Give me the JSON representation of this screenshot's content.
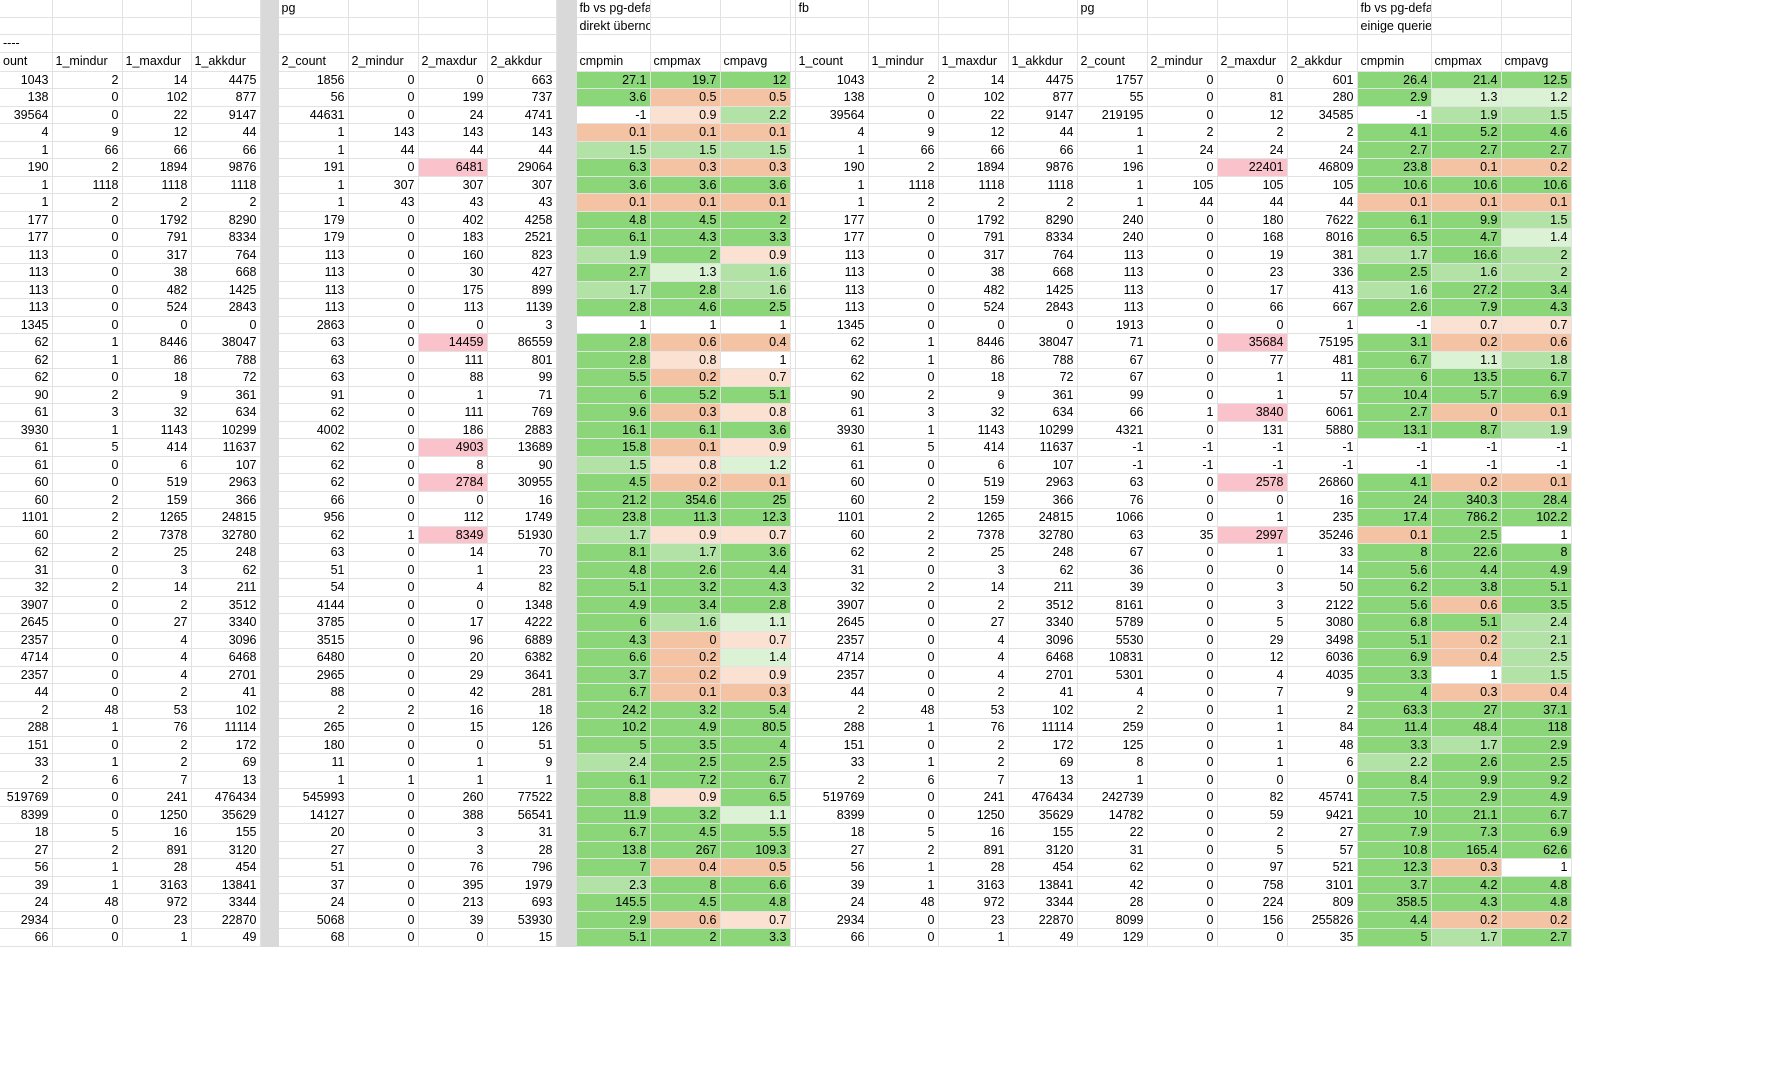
{
  "colors": {
    "green": "#8cd67a",
    "lightgreen": "#b2e2a5",
    "palegreen": "#dcf2d4",
    "white": "#ffffff",
    "salmon": "#f4c3a4",
    "lightsalmon": "#fae1d2",
    "pink": "#fac3cc"
  },
  "widths": [
    52,
    70,
    69,
    69,
    18,
    70,
    70,
    69,
    69,
    20,
    74,
    70,
    70,
    5,
    73,
    70,
    70,
    69,
    70,
    70,
    70,
    70,
    74,
    70,
    70
  ],
  "title_rows": [
    [
      null,
      null,
      null,
      null,
      "SEP",
      "pg",
      null,
      null,
      null,
      "SEP",
      "fb vs pg-default",
      null,
      null,
      null,
      "fb",
      null,
      null,
      null,
      "pg",
      null,
      null,
      null,
      "fb vs pg-default",
      null,
      null
    ],
    [
      null,
      null,
      null,
      null,
      "SEP",
      null,
      null,
      null,
      null,
      "SEP",
      "direkt übernommene queries",
      null,
      null,
      null,
      null,
      null,
      null,
      null,
      null,
      null,
      null,
      null,
      "einige queries optimiert",
      null,
      null
    ],
    [
      "----",
      null,
      null,
      null,
      "SEP",
      null,
      null,
      null,
      null,
      "SEP",
      null,
      null,
      null,
      null,
      null,
      null,
      null,
      null,
      null,
      null,
      null,
      null,
      null,
      null,
      null
    ]
  ],
  "headers": [
    "ount",
    "1_mindur",
    "1_maxdur",
    "1_akkdur",
    "",
    "2_count",
    "2_mindur",
    "2_maxdur",
    "2_akkdur",
    "",
    "cmpmin",
    "cmpmax",
    "cmpavg",
    "",
    "1_count",
    "1_mindur",
    "1_maxdur",
    "1_akkdur",
    "2_count",
    "2_mindur",
    "2_maxdur",
    "2_akkdur",
    "cmpmin",
    "cmpmax",
    "cmpavg"
  ],
  "rows": [
    [
      "1043",
      "2",
      "14",
      "4475",
      "1856",
      "0",
      "0",
      "663",
      "27.1:g",
      "19.7:g",
      "12:g",
      "1043",
      "2",
      "14",
      "4475",
      "1757",
      "0",
      "0",
      "601",
      "26.4:g",
      "21.4:g",
      "12.5:g"
    ],
    [
      "138",
      "0",
      "102",
      "877",
      "56",
      "0",
      "199",
      "737",
      "3.6:g",
      "0.5:s",
      "0.5:s",
      "138",
      "0",
      "102",
      "877",
      "55",
      "0",
      "81",
      "280",
      "2.9:g",
      "1.3:p",
      "1.2:p"
    ],
    [
      "39564",
      "0",
      "22",
      "9147",
      "44631",
      "0",
      "24",
      "4741",
      "-1:w",
      "0.9:ls",
      "2.2:lg",
      "39564",
      "0",
      "22",
      "9147",
      "219195",
      "0",
      "12",
      "34585",
      "-1:w",
      "1.9:lg",
      "1.5:lg"
    ],
    [
      "4",
      "9",
      "12",
      "44",
      "1",
      "143",
      "143",
      "143",
      "0.1:s",
      "0.1:s",
      "0.1:s",
      "4",
      "9",
      "12",
      "44",
      "1",
      "2",
      "2",
      "2",
      "4.1:g",
      "5.2:g",
      "4.6:g"
    ],
    [
      "1",
      "66",
      "66",
      "66",
      "1",
      "44",
      "44",
      "44",
      "1.5:lg",
      "1.5:lg",
      "1.5:lg",
      "1",
      "66",
      "66",
      "66",
      "1",
      "24",
      "24",
      "24",
      "2.7:g",
      "2.7:g",
      "2.7:g"
    ],
    [
      "190",
      "2",
      "1894",
      "9876",
      "191",
      "0",
      "6481:pk",
      "29064",
      "6.3:g",
      "0.3:s",
      "0.3:s",
      "190",
      "2",
      "1894",
      "9876",
      "196",
      "0",
      "22401:pk",
      "46809",
      "23.8:g",
      "0.1:s",
      "0.2:s"
    ],
    [
      "1",
      "1118",
      "1118",
      "1118",
      "1",
      "307",
      "307",
      "307",
      "3.6:g",
      "3.6:g",
      "3.6:g",
      "1",
      "1118",
      "1118",
      "1118",
      "1",
      "105",
      "105",
      "105",
      "10.6:g",
      "10.6:g",
      "10.6:g"
    ],
    [
      "1",
      "2",
      "2",
      "2",
      "1",
      "43",
      "43",
      "43",
      "0.1:s",
      "0.1:s",
      "0.1:s",
      "1",
      "2",
      "2",
      "2",
      "1",
      "44",
      "44",
      "44",
      "0.1:s",
      "0.1:s",
      "0.1:s"
    ],
    [
      "177",
      "0",
      "1792",
      "8290",
      "179",
      "0",
      "402",
      "4258",
      "4.8:g",
      "4.5:g",
      "2:g",
      "177",
      "0",
      "1792",
      "8290",
      "240",
      "0",
      "180",
      "7622",
      "6.1:g",
      "9.9:g",
      "1.5:lg"
    ],
    [
      "177",
      "0",
      "791",
      "8334",
      "179",
      "0",
      "183",
      "2521",
      "6.1:g",
      "4.3:g",
      "3.3:g",
      "177",
      "0",
      "791",
      "8334",
      "240",
      "0",
      "168",
      "8016",
      "6.5:g",
      "4.7:g",
      "1.4:p"
    ],
    [
      "113",
      "0",
      "317",
      "764",
      "113",
      "0",
      "160",
      "823",
      "1.9:lg",
      "2:g",
      "0.9:ls",
      "113",
      "0",
      "317",
      "764",
      "113",
      "0",
      "19",
      "381",
      "1.7:lg",
      "16.6:g",
      "2:lg"
    ],
    [
      "113",
      "0",
      "38",
      "668",
      "113",
      "0",
      "30",
      "427",
      "2.7:g",
      "1.3:p",
      "1.6:lg",
      "113",
      "0",
      "38",
      "668",
      "113",
      "0",
      "23",
      "336",
      "2.5:g",
      "1.6:lg",
      "2:lg"
    ],
    [
      "113",
      "0",
      "482",
      "1425",
      "113",
      "0",
      "175",
      "899",
      "1.7:lg",
      "2.8:g",
      "1.6:lg",
      "113",
      "0",
      "482",
      "1425",
      "113",
      "0",
      "17",
      "413",
      "1.6:lg",
      "27.2:g",
      "3.4:g"
    ],
    [
      "113",
      "0",
      "524",
      "2843",
      "113",
      "0",
      "113",
      "1139",
      "2.8:g",
      "4.6:g",
      "2.5:g",
      "113",
      "0",
      "524",
      "2843",
      "113",
      "0",
      "66",
      "667",
      "2.6:g",
      "7.9:g",
      "4.3:g"
    ],
    [
      "1345",
      "0",
      "0",
      "0",
      "2863",
      "0",
      "0",
      "3",
      "1:w",
      "1:w",
      "1:w",
      "1345",
      "0",
      "0",
      "0",
      "1913",
      "0",
      "0",
      "1",
      "-1:w",
      "0.7:ls",
      "0.7:ls"
    ],
    [
      "62",
      "1",
      "8446",
      "38047",
      "63",
      "0",
      "14459:pk",
      "86559",
      "2.8:g",
      "0.6:s",
      "0.4:s",
      "62",
      "1",
      "8446",
      "38047",
      "71",
      "0",
      "35684:pk",
      "75195",
      "3.1:g",
      "0.2:s",
      "0.6:s"
    ],
    [
      "62",
      "1",
      "86",
      "788",
      "63",
      "0",
      "111",
      "801",
      "2.8:g",
      "0.8:ls",
      "1:w",
      "62",
      "1",
      "86",
      "788",
      "67",
      "0",
      "77",
      "481",
      "6.7:g",
      "1.1:p",
      "1.8:lg"
    ],
    [
      "62",
      "0",
      "18",
      "72",
      "63",
      "0",
      "88",
      "99",
      "5.5:g",
      "0.2:s",
      "0.7:ls",
      "62",
      "0",
      "18",
      "72",
      "67",
      "0",
      "1",
      "11",
      "6:g",
      "13.5:g",
      "6.7:g"
    ],
    [
      "90",
      "2",
      "9",
      "361",
      "91",
      "0",
      "1",
      "71",
      "6:g",
      "5.2:g",
      "5.1:g",
      "90",
      "2",
      "9",
      "361",
      "99",
      "0",
      "1",
      "57",
      "10.4:g",
      "5.7:g",
      "6.9:g"
    ],
    [
      "61",
      "3",
      "32",
      "634",
      "62",
      "0",
      "111",
      "769",
      "9.6:g",
      "0.3:s",
      "0.8:ls",
      "61",
      "3",
      "32",
      "634",
      "66",
      "1",
      "3840:pk",
      "6061",
      "2.7:g",
      "0:s",
      "0.1:s"
    ],
    [
      "3930",
      "1",
      "1143",
      "10299",
      "4002",
      "0",
      "186",
      "2883",
      "16.1:g",
      "6.1:g",
      "3.6:g",
      "3930",
      "1",
      "1143",
      "10299",
      "4321",
      "0",
      "131",
      "5880",
      "13.1:g",
      "8.7:g",
      "1.9:lg"
    ],
    [
      "61",
      "5",
      "414",
      "11637",
      "62",
      "0",
      "4903:pk",
      "13689",
      "15.8:g",
      "0.1:s",
      "0.9:ls",
      "61",
      "5",
      "414",
      "11637",
      "-1",
      "-1",
      "-1",
      "-1",
      "-1:w",
      "-1:w",
      "-1:w"
    ],
    [
      "61",
      "0",
      "6",
      "107",
      "62",
      "0",
      "8",
      "90",
      "1.5:lg",
      "0.8:ls",
      "1.2:p",
      "61",
      "0",
      "6",
      "107",
      "-1",
      "-1",
      "-1",
      "-1",
      "-1:w",
      "-1:w",
      "-1:w"
    ],
    [
      "60",
      "0",
      "519",
      "2963",
      "62",
      "0",
      "2784:pk",
      "30955",
      "4.5:g",
      "0.2:s",
      "0.1:s",
      "60",
      "0",
      "519",
      "2963",
      "63",
      "0",
      "2578:pk",
      "26860",
      "4.1:g",
      "0.2:s",
      "0.1:s"
    ],
    [
      "60",
      "2",
      "159",
      "366",
      "66",
      "0",
      "0",
      "16",
      "21.2:g",
      "354.6:g",
      "25:g",
      "60",
      "2",
      "159",
      "366",
      "76",
      "0",
      "0",
      "16",
      "24:g",
      "340.3:g",
      "28.4:g"
    ],
    [
      "1101",
      "2",
      "1265",
      "24815",
      "956",
      "0",
      "112",
      "1749",
      "23.8:g",
      "11.3:g",
      "12.3:g",
      "1101",
      "2",
      "1265",
      "24815",
      "1066",
      "0",
      "1",
      "235",
      "17.4:g",
      "786.2:g",
      "102.2:g"
    ],
    [
      "60",
      "2",
      "7378",
      "32780",
      "62",
      "1",
      "8349:pk",
      "51930",
      "1.7:lg",
      "0.9:ls",
      "0.7:ls",
      "60",
      "2",
      "7378",
      "32780",
      "63",
      "35",
      "2997:pk",
      "35246",
      "0.1:s",
      "2.5:g",
      "1:w"
    ],
    [
      "62",
      "2",
      "25",
      "248",
      "63",
      "0",
      "14",
      "70",
      "8.1:g",
      "1.7:lg",
      "3.6:g",
      "62",
      "2",
      "25",
      "248",
      "67",
      "0",
      "1",
      "33",
      "8:g",
      "22.6:g",
      "8:g"
    ],
    [
      "31",
      "0",
      "3",
      "62",
      "51",
      "0",
      "1",
      "23",
      "4.8:g",
      "2.6:g",
      "4.4:g",
      "31",
      "0",
      "3",
      "62",
      "36",
      "0",
      "0",
      "14",
      "5.6:g",
      "4.4:g",
      "4.9:g"
    ],
    [
      "32",
      "2",
      "14",
      "211",
      "54",
      "0",
      "4",
      "82",
      "5.1:g",
      "3.2:g",
      "4.3:g",
      "32",
      "2",
      "14",
      "211",
      "39",
      "0",
      "3",
      "50",
      "6.2:g",
      "3.8:g",
      "5.1:g"
    ],
    [
      "3907",
      "0",
      "2",
      "3512",
      "4144",
      "0",
      "0",
      "1348",
      "4.9:g",
      "3.4:g",
      "2.8:g",
      "3907",
      "0",
      "2",
      "3512",
      "8161",
      "0",
      "3",
      "2122",
      "5.6:g",
      "0.6:s",
      "3.5:g"
    ],
    [
      "2645",
      "0",
      "27",
      "3340",
      "3785",
      "0",
      "17",
      "4222",
      "6:g",
      "1.6:lg",
      "1.1:p",
      "2645",
      "0",
      "27",
      "3340",
      "5789",
      "0",
      "5",
      "3080",
      "6.8:g",
      "5.1:g",
      "2.4:lg"
    ],
    [
      "2357",
      "0",
      "4",
      "3096",
      "3515",
      "0",
      "96",
      "6889",
      "4.3:g",
      "0:s",
      "0.7:ls",
      "2357",
      "0",
      "4",
      "3096",
      "5530",
      "0",
      "29",
      "3498",
      "5.1:g",
      "0.2:s",
      "2.1:lg"
    ],
    [
      "4714",
      "0",
      "4",
      "6468",
      "6480",
      "0",
      "20",
      "6382",
      "6.6:g",
      "0.2:s",
      "1.4:p",
      "4714",
      "0",
      "4",
      "6468",
      "10831",
      "0",
      "12",
      "6036",
      "6.9:g",
      "0.4:s",
      "2.5:lg"
    ],
    [
      "2357",
      "0",
      "4",
      "2701",
      "2965",
      "0",
      "29",
      "3641",
      "3.7:g",
      "0.2:s",
      "0.9:ls",
      "2357",
      "0",
      "4",
      "2701",
      "5301",
      "0",
      "4",
      "4035",
      "3.3:g",
      "1:w",
      "1.5:lg"
    ],
    [
      "44",
      "0",
      "2",
      "41",
      "88",
      "0",
      "42",
      "281",
      "6.7:g",
      "0.1:s",
      "0.3:s",
      "44",
      "0",
      "2",
      "41",
      "4",
      "0",
      "7",
      "9",
      "4:g",
      "0.3:s",
      "0.4:s"
    ],
    [
      "2",
      "48",
      "53",
      "102",
      "2",
      "2",
      "16",
      "18",
      "24.2:g",
      "3.2:g",
      "5.4:g",
      "2",
      "48",
      "53",
      "102",
      "2",
      "0",
      "1",
      "2",
      "63.3:g",
      "27:g",
      "37.1:g"
    ],
    [
      "288",
      "1",
      "76",
      "11114",
      "265",
      "0",
      "15",
      "126",
      "10.2:g",
      "4.9:g",
      "80.5:g",
      "288",
      "1",
      "76",
      "11114",
      "259",
      "0",
      "1",
      "84",
      "11.4:g",
      "48.4:g",
      "118:g"
    ],
    [
      "151",
      "0",
      "2",
      "172",
      "180",
      "0",
      "0",
      "51",
      "5:g",
      "3.5:g",
      "4:g",
      "151",
      "0",
      "2",
      "172",
      "125",
      "0",
      "1",
      "48",
      "3.3:g",
      "1.7:lg",
      "2.9:g"
    ],
    [
      "33",
      "1",
      "2",
      "69",
      "11",
      "0",
      "1",
      "9",
      "2.4:lg",
      "2.5:g",
      "2.5:g",
      "33",
      "1",
      "2",
      "69",
      "8",
      "0",
      "1",
      "6",
      "2.2:lg",
      "2.6:g",
      "2.5:g"
    ],
    [
      "2",
      "6",
      "7",
      "13",
      "1",
      "1",
      "1",
      "1",
      "6.1:g",
      "7.2:g",
      "6.7:g",
      "2",
      "6",
      "7",
      "13",
      "1",
      "0",
      "0",
      "0",
      "8.4:g",
      "9.9:g",
      "9.2:g"
    ],
    [
      "519769",
      "0",
      "241",
      "476434",
      "545993",
      "0",
      "260",
      "77522",
      "8.8:g",
      "0.9:ls",
      "6.5:g",
      "519769",
      "0",
      "241",
      "476434",
      "242739",
      "0",
      "82",
      "45741",
      "7.5:g",
      "2.9:g",
      "4.9:g"
    ],
    [
      "8399",
      "0",
      "1250",
      "35629",
      "14127",
      "0",
      "388",
      "56541",
      "11.9:g",
      "3.2:g",
      "1.1:p",
      "8399",
      "0",
      "1250",
      "35629",
      "14782",
      "0",
      "59",
      "9421",
      "10:g",
      "21.1:g",
      "6.7:g"
    ],
    [
      "18",
      "5",
      "16",
      "155",
      "20",
      "0",
      "3",
      "31",
      "6.7:g",
      "4.5:g",
      "5.5:g",
      "18",
      "5",
      "16",
      "155",
      "22",
      "0",
      "2",
      "27",
      "7.9:g",
      "7.3:g",
      "6.9:g"
    ],
    [
      "27",
      "2",
      "891",
      "3120",
      "27",
      "0",
      "3",
      "28",
      "13.8:g",
      "267:g",
      "109.3:g",
      "27",
      "2",
      "891",
      "3120",
      "31",
      "0",
      "5",
      "57",
      "10.8:g",
      "165.4:g",
      "62.6:g"
    ],
    [
      "56",
      "1",
      "28",
      "454",
      "51",
      "0",
      "76",
      "796",
      "7:g",
      "0.4:s",
      "0.5:s",
      "56",
      "1",
      "28",
      "454",
      "62",
      "0",
      "97",
      "521",
      "12.3:g",
      "0.3:s",
      "1:w"
    ],
    [
      "39",
      "1",
      "3163",
      "13841",
      "37",
      "0",
      "395",
      "1979",
      "2.3:lg",
      "8:g",
      "6.6:g",
      "39",
      "1",
      "3163",
      "13841",
      "42",
      "0",
      "758",
      "3101",
      "3.7:g",
      "4.2:g",
      "4.8:g"
    ],
    [
      "24",
      "48",
      "972",
      "3344",
      "24",
      "0",
      "213",
      "693",
      "145.5:g",
      "4.5:g",
      "4.8:g",
      "24",
      "48",
      "972",
      "3344",
      "28",
      "0",
      "224",
      "809",
      "358.5:g",
      "4.3:g",
      "4.8:g"
    ],
    [
      "2934",
      "0",
      "23",
      "22870",
      "5068",
      "0",
      "39",
      "53930",
      "2.9:g",
      "0.6:s",
      "0.7:ls",
      "2934",
      "0",
      "23",
      "22870",
      "8099",
      "0",
      "156",
      "255826",
      "4.4:g",
      "0.2:s",
      "0.2:s"
    ],
    [
      "66",
      "0",
      "1",
      "49",
      "68",
      "0",
      "0",
      "15",
      "5.1:g",
      "2:g",
      "3.3:g",
      "66",
      "0",
      "1",
      "49",
      "129",
      "0",
      "0",
      "35",
      "5:g",
      "1.7:lg",
      "2.7:g"
    ]
  ]
}
